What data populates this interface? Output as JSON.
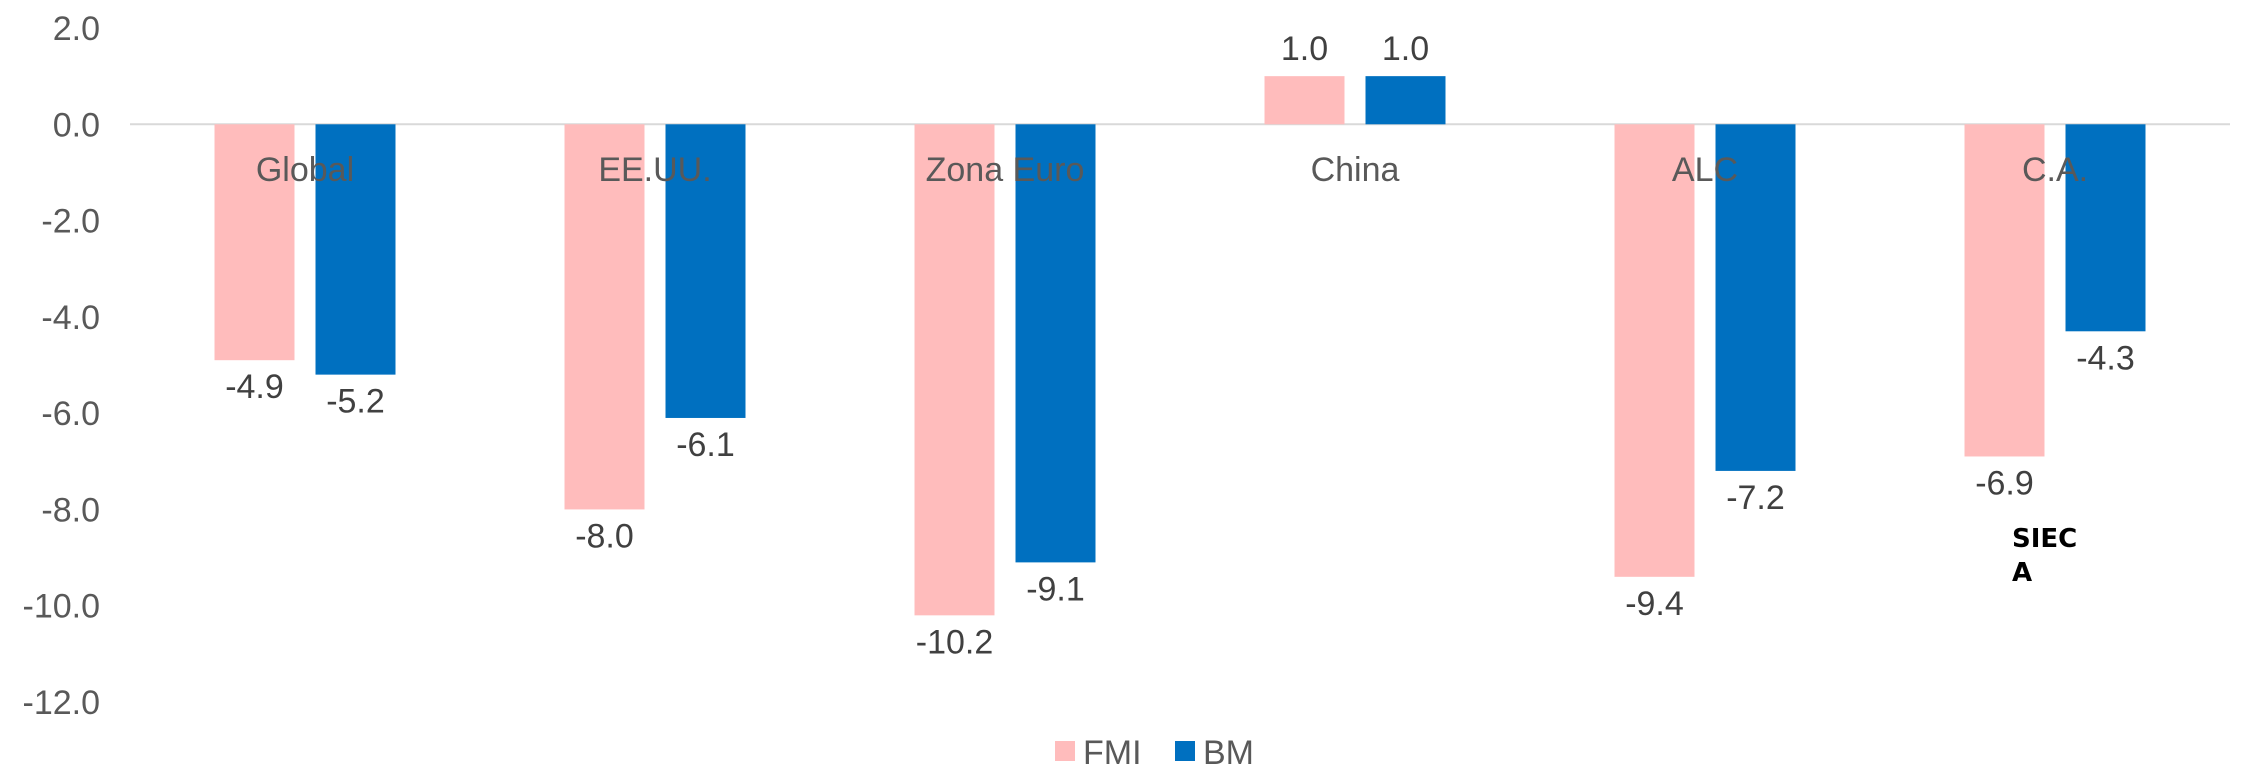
{
  "chart_data": {
    "type": "bar",
    "title": "",
    "xlabel": "",
    "ylabel": "",
    "categories": [
      "Global",
      "EE.UU.",
      "Zona Euro",
      "China",
      "ALC",
      "C.A."
    ],
    "series": [
      {
        "name": "FMI",
        "color": "#ffbcbc",
        "values": [
          -4.9,
          -8.0,
          -10.2,
          1.0,
          -9.4,
          -6.9
        ]
      },
      {
        "name": "BM",
        "color": "#0070c0",
        "values": [
          -5.2,
          -6.1,
          -9.1,
          1.0,
          -7.2,
          -4.3
        ]
      }
    ],
    "ylim": [
      -12.0,
      2.0
    ],
    "yticks": [
      2.0,
      0.0,
      -2.0,
      -4.0,
      -6.0,
      -8.0,
      -10.0,
      -12.0
    ],
    "value_format_decimals": 1,
    "grid": false,
    "legend": "bottom-center",
    "annotation": [
      "SIEC",
      "A"
    ]
  }
}
